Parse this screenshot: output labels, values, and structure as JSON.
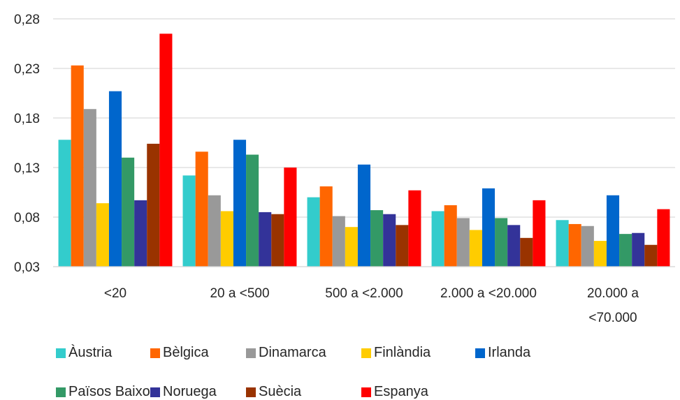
{
  "chart_data": {
    "type": "bar",
    "categories": [
      [
        "<20"
      ],
      [
        "20 a <500"
      ],
      [
        "500 a <2.000"
      ],
      [
        "2.000 a <20.000"
      ],
      [
        "20.000 a",
        "<70.000"
      ]
    ],
    "ylim": [
      0.03,
      0.28
    ],
    "yticks": [
      "0,03",
      "0,08",
      "0,13",
      "0,18",
      "0,23",
      "0,28"
    ],
    "grid": true,
    "legend_position": "bottom",
    "series": [
      {
        "name": "Àustria",
        "color": "#33CCCC",
        "values": [
          0.158,
          0.122,
          0.1,
          0.086,
          0.077
        ]
      },
      {
        "name": "Bèlgica",
        "color": "#FF6600",
        "values": [
          0.233,
          0.146,
          0.111,
          0.092,
          0.073
        ]
      },
      {
        "name": "Dinamarca",
        "color": "#999999",
        "values": [
          0.189,
          0.102,
          0.081,
          0.079,
          0.071
        ]
      },
      {
        "name": "Finlàndia",
        "color": "#FFCC00",
        "values": [
          0.094,
          0.086,
          0.07,
          0.067,
          0.056
        ]
      },
      {
        "name": "Irlanda",
        "color": "#0066CC",
        "values": [
          0.207,
          0.158,
          0.133,
          0.109,
          0.102
        ]
      },
      {
        "name": "Països Baixos",
        "color": "#339966",
        "values": [
          0.14,
          0.143,
          0.087,
          0.079,
          0.063
        ]
      },
      {
        "name": "Noruega",
        "color": "#333399",
        "values": [
          0.097,
          0.085,
          0.083,
          0.072,
          0.064
        ]
      },
      {
        "name": "Suècia",
        "color": "#993300",
        "values": [
          0.154,
          0.083,
          0.072,
          0.059,
          0.052
        ]
      },
      {
        "name": "Espanya",
        "color": "#FF0000",
        "values": [
          0.265,
          0.13,
          0.107,
          0.097,
          0.088
        ]
      }
    ]
  }
}
